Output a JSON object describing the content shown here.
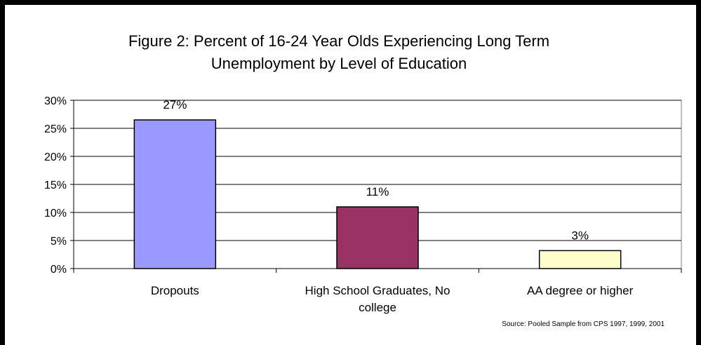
{
  "chart_data": {
    "type": "bar",
    "title_lines": [
      "Figure 2: Percent of 16-24 Year Olds Experiencing Long Term",
      "Unemployment by Level of Education"
    ],
    "categories": [
      [
        "Dropouts"
      ],
      [
        "High School Graduates, No",
        "college"
      ],
      [
        "AA degree or higher"
      ]
    ],
    "values": [
      26.5,
      11,
      3.2
    ],
    "data_labels": [
      "27%",
      "11%",
      "3%"
    ],
    "bar_colors": [
      "#9999ff",
      "#993366",
      "#ffffcc"
    ],
    "ylim": [
      0,
      30
    ],
    "yticks": [
      0,
      5,
      10,
      15,
      20,
      25,
      30
    ],
    "ytick_labels": [
      "0%",
      "5%",
      "10%",
      "15%",
      "20%",
      "25%",
      "30%"
    ],
    "grid": true,
    "legend": "none",
    "source": "Source: Pooled Sample from CPS 1997, 1999, 2001"
  }
}
